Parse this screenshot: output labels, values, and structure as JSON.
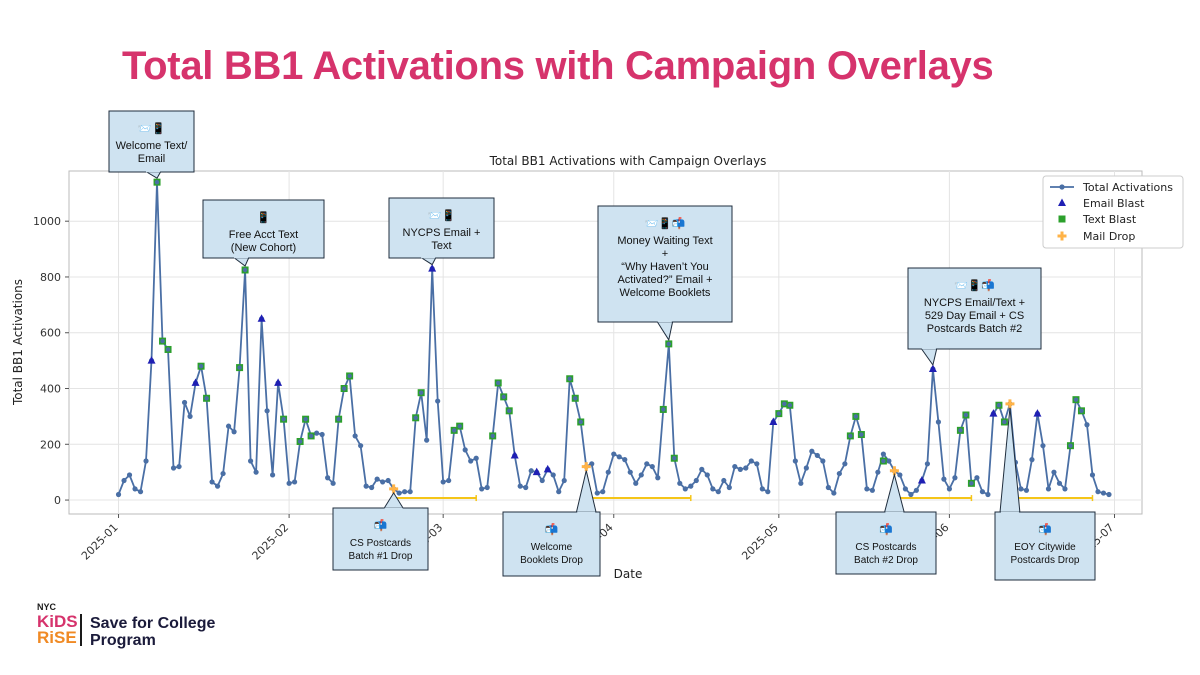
{
  "slide_title": "Total BB1 Activations with Campaign Overlays",
  "logo": {
    "nyc": "NYC",
    "kids": "KiDS",
    "rise": "RiSE",
    "program_line1": "Save for College",
    "program_line2": "Program"
  },
  "colors": {
    "title": "#d6336c",
    "line": "#4a6fa5",
    "email": "#1f1fb4",
    "text": "#2ca02c",
    "mail": "#ffb347",
    "annotation_fill": "#cfe3f1"
  },
  "chart_data": {
    "type": "line",
    "title": "Total BB1 Activations with Campaign Overlays",
    "xlabel": "Date",
    "ylabel": "Total BB1 Activations",
    "xlim": [
      "2024-12-23",
      "2025-07-06"
    ],
    "ylim": [
      -50,
      1180
    ],
    "yticks": [
      0,
      200,
      400,
      600,
      800,
      1000
    ],
    "xticks": [
      "2025-01",
      "2025-02",
      "2025-03",
      "2025-04",
      "2025-05",
      "2025-06",
      "2025-07"
    ],
    "grid": true,
    "legend_position": "top-right",
    "legend": [
      "Total Activations",
      "Email Blast",
      "Text Blast",
      "Mail Drop"
    ],
    "series": [
      {
        "name": "Total Activations",
        "points": [
          [
            "2025-01-01",
            20
          ],
          [
            "2025-01-02",
            70
          ],
          [
            "2025-01-03",
            90
          ],
          [
            "2025-01-04",
            40
          ],
          [
            "2025-01-05",
            30
          ],
          [
            "2025-01-06",
            140
          ],
          [
            "2025-01-07",
            500
          ],
          [
            "2025-01-08",
            1140
          ],
          [
            "2025-01-09",
            570
          ],
          [
            "2025-01-10",
            540
          ],
          [
            "2025-01-11",
            115
          ],
          [
            "2025-01-12",
            120
          ],
          [
            "2025-01-13",
            350
          ],
          [
            "2025-01-14",
            300
          ],
          [
            "2025-01-15",
            420
          ],
          [
            "2025-01-16",
            480
          ],
          [
            "2025-01-17",
            365
          ],
          [
            "2025-01-18",
            65
          ],
          [
            "2025-01-19",
            50
          ],
          [
            "2025-01-20",
            95
          ],
          [
            "2025-01-21",
            265
          ],
          [
            "2025-01-22",
            245
          ],
          [
            "2025-01-23",
            475
          ],
          [
            "2025-01-24",
            825
          ],
          [
            "2025-01-25",
            140
          ],
          [
            "2025-01-26",
            100
          ],
          [
            "2025-01-27",
            650
          ],
          [
            "2025-01-28",
            320
          ],
          [
            "2025-01-29",
            90
          ],
          [
            "2025-01-30",
            420
          ],
          [
            "2025-01-31",
            290
          ],
          [
            "2025-02-01",
            60
          ],
          [
            "2025-02-02",
            65
          ],
          [
            "2025-02-03",
            210
          ],
          [
            "2025-02-04",
            290
          ],
          [
            "2025-02-05",
            230
          ],
          [
            "2025-02-06",
            240
          ],
          [
            "2025-02-07",
            235
          ],
          [
            "2025-02-08",
            80
          ],
          [
            "2025-02-09",
            60
          ],
          [
            "2025-02-10",
            290
          ],
          [
            "2025-02-11",
            400
          ],
          [
            "2025-02-12",
            445
          ],
          [
            "2025-02-13",
            230
          ],
          [
            "2025-02-14",
            195
          ],
          [
            "2025-02-15",
            50
          ],
          [
            "2025-02-16",
            45
          ],
          [
            "2025-02-17",
            75
          ],
          [
            "2025-02-18",
            65
          ],
          [
            "2025-02-19",
            70
          ],
          [
            "2025-02-20",
            40
          ],
          [
            "2025-02-21",
            25
          ],
          [
            "2025-02-22",
            30
          ],
          [
            "2025-02-23",
            30
          ],
          [
            "2025-02-24",
            295
          ],
          [
            "2025-02-25",
            385
          ],
          [
            "2025-02-26",
            215
          ],
          [
            "2025-02-27",
            830
          ],
          [
            "2025-02-28",
            355
          ],
          [
            "2025-03-01",
            65
          ],
          [
            "2025-03-02",
            70
          ],
          [
            "2025-03-03",
            250
          ],
          [
            "2025-03-04",
            265
          ],
          [
            "2025-03-05",
            180
          ],
          [
            "2025-03-06",
            140
          ],
          [
            "2025-03-07",
            150
          ],
          [
            "2025-03-08",
            40
          ],
          [
            "2025-03-09",
            45
          ],
          [
            "2025-03-10",
            230
          ],
          [
            "2025-03-11",
            420
          ],
          [
            "2025-03-12",
            370
          ],
          [
            "2025-03-13",
            320
          ],
          [
            "2025-03-14",
            160
          ],
          [
            "2025-03-15",
            50
          ],
          [
            "2025-03-16",
            45
          ],
          [
            "2025-03-17",
            105
          ],
          [
            "2025-03-18",
            100
          ],
          [
            "2025-03-19",
            70
          ],
          [
            "2025-03-20",
            110
          ],
          [
            "2025-03-21",
            90
          ],
          [
            "2025-03-22",
            30
          ],
          [
            "2025-03-23",
            70
          ],
          [
            "2025-03-24",
            435
          ],
          [
            "2025-03-25",
            365
          ],
          [
            "2025-03-26",
            280
          ],
          [
            "2025-03-27",
            120
          ],
          [
            "2025-03-28",
            130
          ],
          [
            "2025-03-29",
            25
          ],
          [
            "2025-03-30",
            30
          ],
          [
            "2025-03-31",
            100
          ],
          [
            "2025-04-01",
            165
          ],
          [
            "2025-04-02",
            155
          ],
          [
            "2025-04-03",
            145
          ],
          [
            "2025-04-04",
            100
          ],
          [
            "2025-04-05",
            60
          ],
          [
            "2025-04-06",
            90
          ],
          [
            "2025-04-07",
            130
          ],
          [
            "2025-04-08",
            120
          ],
          [
            "2025-04-09",
            80
          ],
          [
            "2025-04-10",
            325
          ],
          [
            "2025-04-11",
            560
          ],
          [
            "2025-04-12",
            150
          ],
          [
            "2025-04-13",
            60
          ],
          [
            "2025-04-14",
            40
          ],
          [
            "2025-04-15",
            50
          ],
          [
            "2025-04-16",
            70
          ],
          [
            "2025-04-17",
            110
          ],
          [
            "2025-04-18",
            90
          ],
          [
            "2025-04-19",
            40
          ],
          [
            "2025-04-20",
            30
          ],
          [
            "2025-04-21",
            70
          ],
          [
            "2025-04-22",
            45
          ],
          [
            "2025-04-23",
            120
          ],
          [
            "2025-04-24",
            110
          ],
          [
            "2025-04-25",
            115
          ],
          [
            "2025-04-26",
            140
          ],
          [
            "2025-04-27",
            130
          ],
          [
            "2025-04-28",
            40
          ],
          [
            "2025-04-29",
            30
          ],
          [
            "2025-04-30",
            280
          ],
          [
            "2025-05-01",
            310
          ],
          [
            "2025-05-02",
            345
          ],
          [
            "2025-05-03",
            340
          ],
          [
            "2025-05-04",
            140
          ],
          [
            "2025-05-05",
            60
          ],
          [
            "2025-05-06",
            115
          ],
          [
            "2025-05-07",
            175
          ],
          [
            "2025-05-08",
            160
          ],
          [
            "2025-05-09",
            140
          ],
          [
            "2025-05-10",
            45
          ],
          [
            "2025-05-11",
            25
          ],
          [
            "2025-05-12",
            95
          ],
          [
            "2025-05-13",
            130
          ],
          [
            "2025-05-14",
            230
          ],
          [
            "2025-05-15",
            300
          ],
          [
            "2025-05-16",
            235
          ],
          [
            "2025-05-17",
            40
          ],
          [
            "2025-05-18",
            35
          ],
          [
            "2025-05-19",
            100
          ],
          [
            "2025-05-20",
            165
          ],
          [
            "2025-05-21",
            140
          ],
          [
            "2025-05-22",
            105
          ],
          [
            "2025-05-23",
            90
          ],
          [
            "2025-05-24",
            40
          ],
          [
            "2025-05-25",
            20
          ],
          [
            "2025-05-26",
            35
          ],
          [
            "2025-05-27",
            70
          ],
          [
            "2025-05-28",
            130
          ],
          [
            "2025-05-29",
            470
          ],
          [
            "2025-05-30",
            280
          ],
          [
            "2025-05-31",
            75
          ],
          [
            "2025-06-01",
            40
          ],
          [
            "2025-06-02",
            80
          ],
          [
            "2025-06-03",
            250
          ],
          [
            "2025-06-04",
            305
          ],
          [
            "2025-06-05",
            60
          ],
          [
            "2025-06-06",
            80
          ],
          [
            "2025-06-07",
            30
          ],
          [
            "2025-06-08",
            20
          ],
          [
            "2025-06-09",
            310
          ],
          [
            "2025-06-10",
            340
          ],
          [
            "2025-06-11",
            280
          ],
          [
            "2025-06-12",
            345
          ],
          [
            "2025-06-13",
            135
          ],
          [
            "2025-06-14",
            40
          ],
          [
            "2025-06-15",
            35
          ],
          [
            "2025-06-16",
            145
          ],
          [
            "2025-06-17",
            310
          ],
          [
            "2025-06-18",
            195
          ],
          [
            "2025-06-19",
            40
          ],
          [
            "2025-06-20",
            100
          ],
          [
            "2025-06-21",
            60
          ],
          [
            "2025-06-22",
            40
          ],
          [
            "2025-06-23",
            195
          ],
          [
            "2025-06-24",
            360
          ],
          [
            "2025-06-25",
            320
          ],
          [
            "2025-06-26",
            270
          ],
          [
            "2025-06-27",
            90
          ],
          [
            "2025-06-28",
            30
          ],
          [
            "2025-06-29",
            25
          ],
          [
            "2025-06-30",
            20
          ]
        ]
      },
      {
        "name": "Email Blast",
        "points": [
          [
            "2025-01-07",
            500
          ],
          [
            "2025-01-15",
            420
          ],
          [
            "2025-01-27",
            650
          ],
          [
            "2025-01-30",
            420
          ],
          [
            "2025-02-27",
            830
          ],
          [
            "2025-03-14",
            160
          ],
          [
            "2025-04-30",
            280
          ],
          [
            "2025-05-29",
            470
          ],
          [
            "2025-06-09",
            310
          ],
          [
            "2025-06-17",
            310
          ],
          [
            "2025-05-27",
            70
          ],
          [
            "2025-03-20",
            110
          ],
          [
            "2025-03-18",
            100
          ]
        ]
      },
      {
        "name": "Text Blast",
        "points": [
          [
            "2025-01-08",
            1140
          ],
          [
            "2025-01-09",
            570
          ],
          [
            "2025-01-10",
            540
          ],
          [
            "2025-01-16",
            480
          ],
          [
            "2025-01-17",
            365
          ],
          [
            "2025-01-23",
            475
          ],
          [
            "2025-01-24",
            825
          ],
          [
            "2025-01-31",
            290
          ],
          [
            "2025-02-03",
            210
          ],
          [
            "2025-02-04",
            290
          ],
          [
            "2025-02-05",
            230
          ],
          [
            "2025-02-10",
            290
          ],
          [
            "2025-02-11",
            400
          ],
          [
            "2025-02-12",
            445
          ],
          [
            "2025-02-24",
            295
          ],
          [
            "2025-02-25",
            385
          ],
          [
            "2025-03-03",
            250
          ],
          [
            "2025-03-04",
            265
          ],
          [
            "2025-03-10",
            230
          ],
          [
            "2025-03-11",
            420
          ],
          [
            "2025-03-12",
            370
          ],
          [
            "2025-03-13",
            320
          ],
          [
            "2025-03-24",
            435
          ],
          [
            "2025-03-25",
            365
          ],
          [
            "2025-03-26",
            280
          ],
          [
            "2025-04-10",
            325
          ],
          [
            "2025-04-11",
            560
          ],
          [
            "2025-04-12",
            150
          ],
          [
            "2025-05-01",
            310
          ],
          [
            "2025-05-02",
            345
          ],
          [
            "2025-05-03",
            340
          ],
          [
            "2025-05-14",
            230
          ],
          [
            "2025-05-15",
            300
          ],
          [
            "2025-05-16",
            235
          ],
          [
            "2025-05-20",
            140
          ],
          [
            "2025-06-03",
            250
          ],
          [
            "2025-06-04",
            305
          ],
          [
            "2025-06-05",
            60
          ],
          [
            "2025-06-10",
            340
          ],
          [
            "2025-06-11",
            280
          ],
          [
            "2025-06-23",
            195
          ],
          [
            "2025-06-24",
            360
          ],
          [
            "2025-06-25",
            320
          ]
        ]
      },
      {
        "name": "Mail Drop",
        "points": [
          [
            "2025-02-20",
            40
          ],
          [
            "2025-03-27",
            120
          ],
          [
            "2025-05-22",
            105
          ],
          [
            "2025-06-12",
            345
          ]
        ]
      }
    ],
    "mail_drop_spans": [
      {
        "start": "2025-02-20",
        "end": "2025-03-07"
      },
      {
        "start": "2025-03-27",
        "end": "2025-04-15"
      },
      {
        "start": "2025-05-22",
        "end": "2025-06-05"
      },
      {
        "start": "2025-06-12",
        "end": "2025-06-27"
      }
    ],
    "annotations": [
      {
        "icons": "📨📱",
        "lines": [
          "Welcome Text/",
          "Email"
        ]
      },
      {
        "icons": "📱",
        "lines": [
          "Free Acct Text",
          "(New Cohort)"
        ]
      },
      {
        "icons": "📨📱",
        "lines": [
          "NYCPS Email +",
          "Text"
        ]
      },
      {
        "icons": "📨📱📬",
        "lines": [
          "Money Waiting Text",
          "+",
          "“Why Haven’t You",
          "Activated?” Email +",
          "Welcome Booklets"
        ]
      },
      {
        "icons": "📨📱📬",
        "lines": [
          "NYCPS Email/Text +",
          "529 Day Email + CS",
          "Postcards Batch #2"
        ]
      },
      {
        "icons": "📬",
        "lines": [
          "CS Postcards",
          "Batch #1 Drop"
        ]
      },
      {
        "icons": "📬",
        "lines": [
          "Welcome",
          "Booklets Drop"
        ]
      },
      {
        "icons": "📬",
        "lines": [
          "CS Postcards",
          "Batch #2 Drop"
        ]
      },
      {
        "icons": "📬",
        "lines": [
          "EOY Citywide",
          "Postcards Drop"
        ]
      }
    ]
  }
}
